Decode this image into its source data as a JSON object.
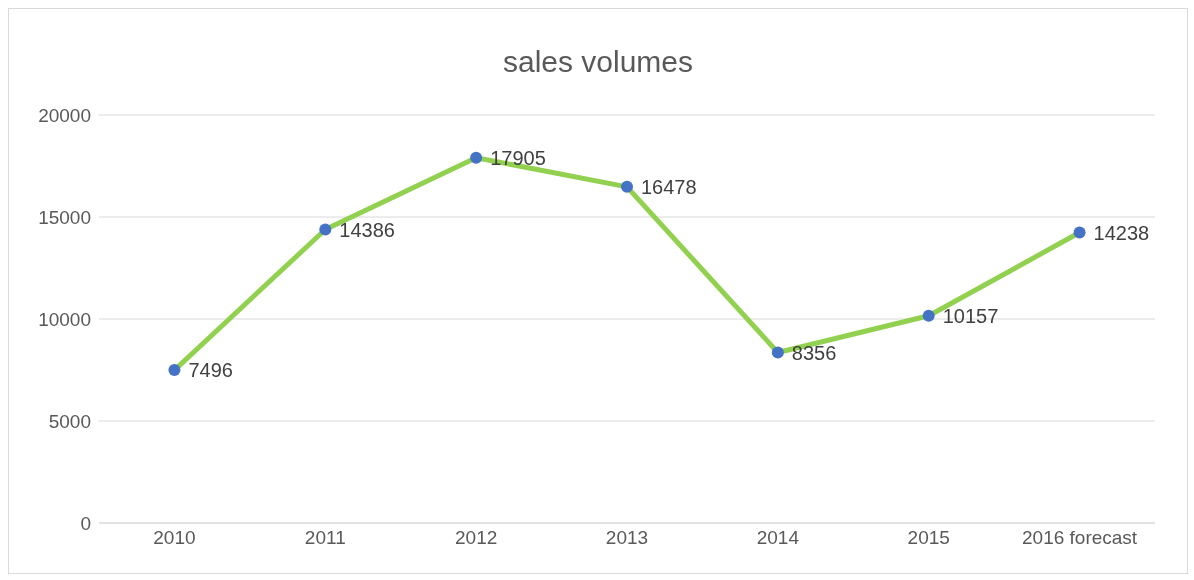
{
  "chart_data": {
    "type": "line",
    "title": "sales volumes",
    "categories": [
      "2010",
      "2011",
      "2012",
      "2013",
      "2014",
      "2015",
      "2016 forecast"
    ],
    "series": [
      {
        "color": "#92d050",
        "colors": [
          "#4472c4",
          "#4472c4",
          "#4472c4",
          "#4472c4",
          "#4472c4",
          "#4472c4",
          "#4472c4"
        ],
        "values": [
          7496,
          14386,
          17905,
          16478,
          8356,
          10157,
          14238
        ]
      }
    ],
    "ylim": [
      0,
      20000
    ],
    "yticks": [
      0,
      5000,
      10000,
      15000,
      20000
    ],
    "grid": "y",
    "marker": "circle",
    "data_labels": true
  }
}
